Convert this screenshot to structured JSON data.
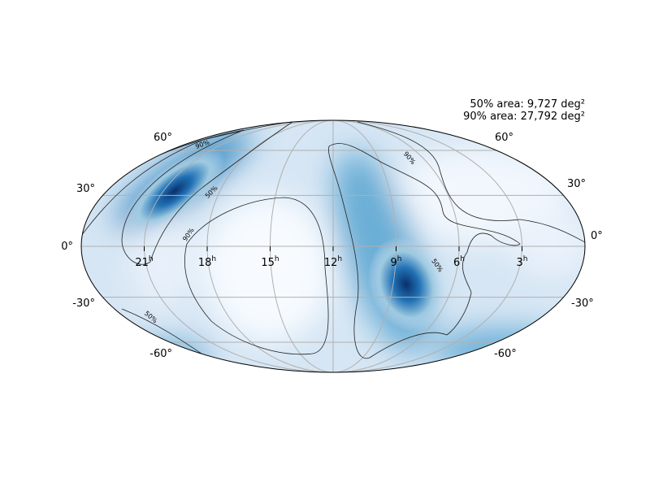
{
  "annotation": {
    "lines": [
      "50% area: 9,727 deg²",
      "90% area: 27,792 deg²"
    ]
  },
  "ra_ticks": [
    {
      "text": "21",
      "sup": "h"
    },
    {
      "text": "18",
      "sup": "h"
    },
    {
      "text": "15",
      "sup": "h"
    },
    {
      "text": "12",
      "sup": "h"
    },
    {
      "text": "9",
      "sup": "h"
    },
    {
      "text": "6",
      "sup": "h"
    },
    {
      "text": "3",
      "sup": "h"
    }
  ],
  "dec_ticks_left": [
    "60°",
    "30°",
    "0°",
    "-30°",
    "-60°"
  ],
  "dec_ticks_right": [
    "60°",
    "30°",
    "0°",
    "-30°",
    "-60°"
  ],
  "contour_labels": [
    "90%",
    "50%",
    "90%",
    "90%",
    "50%",
    "50%"
  ]
}
